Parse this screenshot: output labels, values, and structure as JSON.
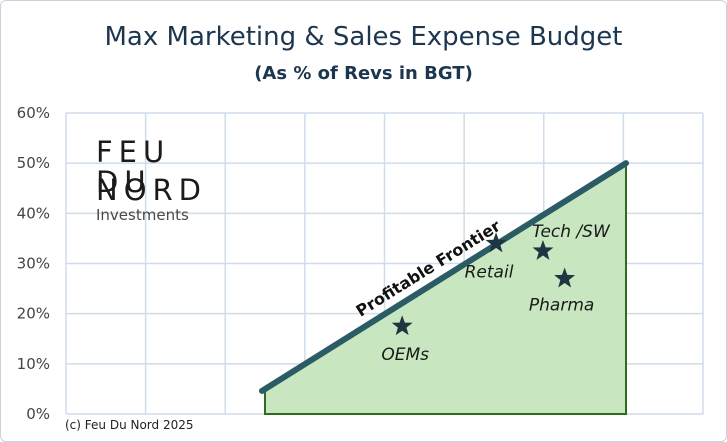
{
  "chart_data": {
    "type": "area",
    "title": "Max Marketing & Sales Expense Budget",
    "subtitle": "(As % of Revs in BGT)",
    "y_ticks": [
      "0%",
      "10%",
      "20%",
      "30%",
      "40%",
      "50%",
      "60%"
    ],
    "ylim": [
      0,
      60
    ],
    "grid": true,
    "series": [
      {
        "name": "Profitable Frontier",
        "x": [
          0,
          1
        ],
        "values": [
          5,
          50
        ]
      }
    ],
    "points": [
      {
        "label": "OEMs",
        "x": 0.38,
        "y": 17.5
      },
      {
        "label": "Retail",
        "x": 0.64,
        "y": 34
      },
      {
        "label": "Tech /SW",
        "x": 0.77,
        "y": 32.5
      },
      {
        "label": "Pharma",
        "x": 0.83,
        "y": 27
      }
    ]
  },
  "logo": {
    "line1": "FEU",
    "line2": "DU",
    "line3": "NORD",
    "tagline": "Investments"
  },
  "copyright": "(c) Feu Du Nord 2025",
  "colors": {
    "title": "#1c3650",
    "frontier_line": "#2b5b64",
    "fill": "#c8e6c0",
    "fill_edge": "#2e6b1e",
    "star": "#1c3644",
    "grid": "#cfdcea"
  }
}
